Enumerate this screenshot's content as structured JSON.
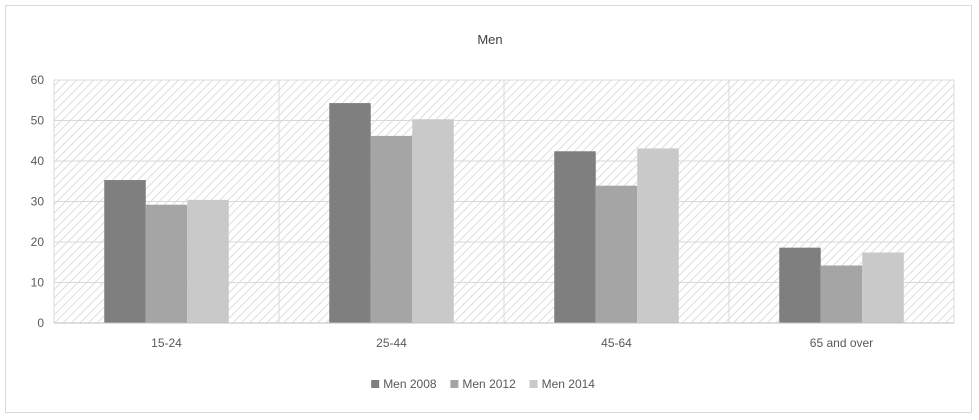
{
  "chart_data": {
    "type": "bar",
    "title": "Men",
    "xlabel": "",
    "ylabel": "",
    "categories": [
      "15-24",
      "25-44",
      "45-64",
      "65 and over"
    ],
    "series": [
      {
        "name": "Men 2008",
        "values": [
          35.3,
          54.3,
          42.4,
          18.6
        ],
        "color": "#7f7f7f"
      },
      {
        "name": "Men 2012",
        "values": [
          29.2,
          46.2,
          33.9,
          14.2
        ],
        "color": "#a5a5a5"
      },
      {
        "name": "Men 2014",
        "values": [
          30.4,
          50.3,
          43.1,
          17.4
        ],
        "color": "#c9c9c9"
      }
    ],
    "ylim": [
      0,
      60
    ],
    "yticks": [
      0,
      10,
      20,
      30,
      40,
      50,
      60
    ],
    "grid": true,
    "legend_position": "bottom"
  }
}
